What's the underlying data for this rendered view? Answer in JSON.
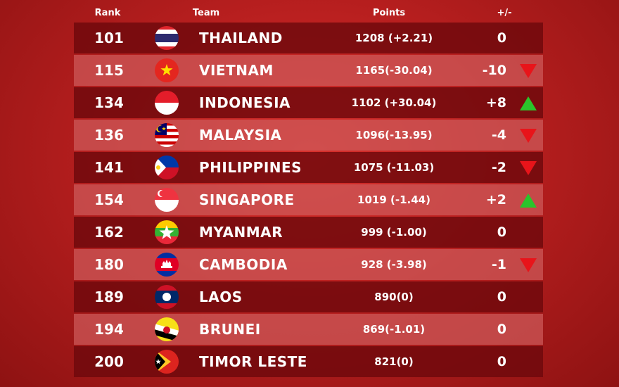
{
  "table": {
    "columns": [
      "Rank",
      "Team",
      "Points",
      "+/-"
    ],
    "rows": [
      {
        "rank": 101,
        "team": "THAILAND",
        "points": "1208 (+2.21)",
        "change": "0"
      },
      {
        "rank": 115,
        "team": "VIETNAM",
        "points": "1165(-30.04)",
        "change": "-10"
      },
      {
        "rank": 134,
        "team": "INDONESIA",
        "points": "1102 (+30.04)",
        "change": "+8"
      },
      {
        "rank": 136,
        "team": "MALAYSIA",
        "points": "1096(-13.95)",
        "change": "-4"
      },
      {
        "rank": 141,
        "team": "PHILIPPINES",
        "points": "1075 (-11.03)",
        "change": "-2"
      },
      {
        "rank": 154,
        "team": "SINGAPORE",
        "points": "1019 (-1.44)",
        "change": "+2"
      },
      {
        "rank": 162,
        "team": "MYANMAR",
        "points": "999 (-1.00)",
        "change": "0"
      },
      {
        "rank": 180,
        "team": "CAMBODIA",
        "points": "928 (-3.98)",
        "change": "-1"
      },
      {
        "rank": 189,
        "team": "LAOS",
        "points": "890(0)",
        "change": "0"
      },
      {
        "rank": 194,
        "team": "BRUNEI",
        "points": "869(-1.01)",
        "change": "0"
      },
      {
        "rank": 200,
        "team": "TIMOR LESTE",
        "points": "821(0)",
        "change": "0"
      }
    ]
  }
}
